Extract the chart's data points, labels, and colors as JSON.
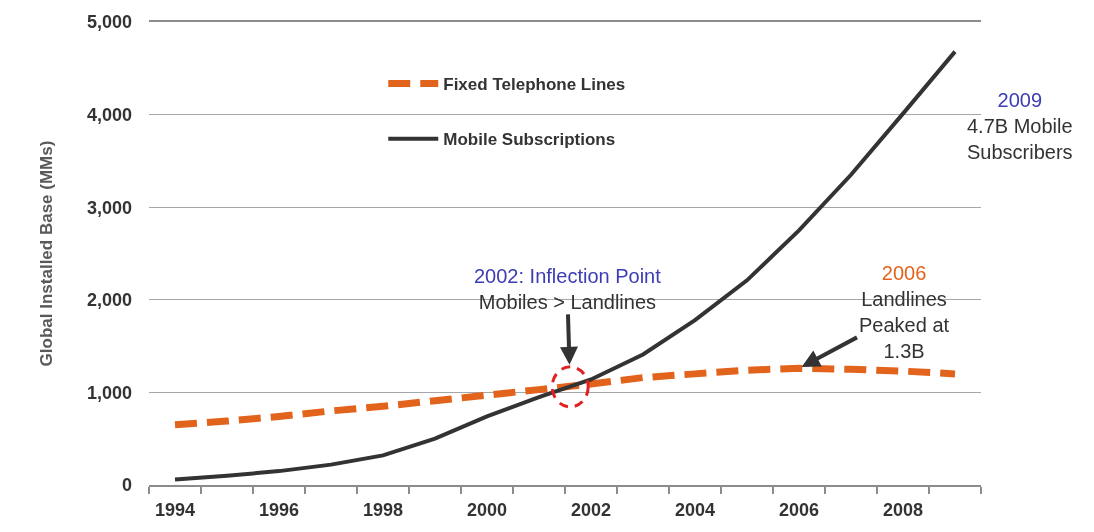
{
  "chart_data": {
    "type": "line",
    "ylabel": "Global Installed Base (MMs)",
    "x": [
      1994,
      1995,
      1996,
      1997,
      1998,
      1999,
      2000,
      2001,
      2002,
      2003,
      2004,
      2005,
      2006,
      2007,
      2008,
      2009
    ],
    "xlim": [
      1993.5,
      2009.5
    ],
    "xticks": [
      1994,
      1996,
      1998,
      2000,
      2002,
      2004,
      2006,
      2008
    ],
    "ylim": [
      0,
      5000
    ],
    "yticks": [
      0,
      {
        "value": 1000,
        "label": "1,000"
      },
      {
        "value": 2000,
        "label": "2,000"
      },
      {
        "value": 3000,
        "label": "3,000"
      },
      {
        "value": 4000,
        "label": "4,000"
      },
      {
        "value": 5000,
        "label": "5,000"
      }
    ],
    "series": [
      {
        "name": "Fixed Telephone Lines",
        "color": "#e2631b",
        "line_style": "dashed",
        "values": [
          650,
          690,
          740,
          800,
          850,
          910,
          970,
          1030,
          1090,
          1160,
          1200,
          1240,
          1260,
          1250,
          1230,
          1200
        ]
      },
      {
        "name": "Mobile Subscriptions",
        "color": "#333333",
        "line_style": "solid",
        "values": [
          60,
          100,
          150,
          220,
          320,
          500,
          740,
          950,
          1140,
          1410,
          1780,
          2210,
          2750,
          3350,
          4010,
          4680
        ]
      }
    ],
    "annotations": [
      {
        "text": "2002: Inflection Point\nMobiles > Landlines",
        "x": 2001.6,
        "y": 1060
      },
      {
        "text": "2006\nLandlines\nPeaked at\n1.3B",
        "x": 2006,
        "y": 1260
      },
      "2009\n4.7B Mobile\nSubscribers"
    ],
    "grid": "y",
    "legend": "top"
  }
}
